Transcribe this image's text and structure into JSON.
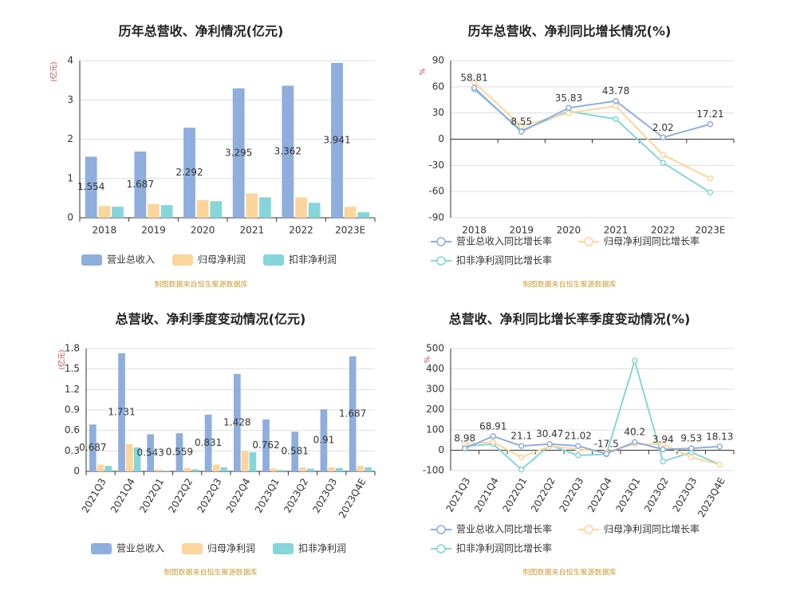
{
  "chart_data": [
    {
      "type": "bar",
      "title": "历年总营收、净利情况(亿元)",
      "ylabel": "(亿元)",
      "source": "制图数据来自恒生聚源数据库",
      "categories": [
        "2018",
        "2019",
        "2020",
        "2021",
        "2022",
        "2023E"
      ],
      "ylim": [
        0,
        4
      ],
      "yticks": [
        0,
        1,
        2,
        3,
        4
      ],
      "grid": true,
      "series": [
        {
          "name": "营业总收入",
          "color": "#8eaedd",
          "labels": true,
          "values": [
            1.554,
            1.687,
            2.292,
            3.295,
            3.362,
            3.941
          ]
        },
        {
          "name": "归母净利润",
          "color": "#fcd59c",
          "labels": false,
          "values": [
            0.3,
            0.35,
            0.45,
            0.62,
            0.52,
            0.28
          ]
        },
        {
          "name": "扣非净利润",
          "color": "#86d5d8",
          "labels": false,
          "values": [
            0.28,
            0.32,
            0.42,
            0.52,
            0.38,
            0.14
          ]
        }
      ]
    },
    {
      "type": "line",
      "title": "历年总营收、净利同比增长情况(%)",
      "ylabel": "%",
      "source": "制图数据来自恒生聚源数据库",
      "categories": [
        "2018",
        "2019",
        "2020",
        "2021",
        "2022",
        "2023E"
      ],
      "ylim": [
        -90,
        90
      ],
      "yticks": [
        -90,
        -60,
        -30,
        0,
        30,
        60,
        90
      ],
      "grid": true,
      "series": [
        {
          "name": "营业总收入同比增长率",
          "color": "#8eaedd",
          "labels": true,
          "values": [
            58.81,
            8.55,
            35.83,
            43.78,
            2.02,
            17.21
          ]
        },
        {
          "name": "归母净利润同比增长率",
          "color": "#fcd59c",
          "labels": false,
          "values": [
            65,
            15,
            30,
            38,
            -18,
            -45
          ]
        },
        {
          "name": "扣非净利润同比增长率",
          "color": "#86d5d8",
          "labels": false,
          "values": [
            57,
            10,
            32,
            23,
            -27,
            -61
          ]
        }
      ]
    },
    {
      "type": "bar",
      "title": "总营收、净利季度变动情况(亿元)",
      "ylabel": "(亿元)",
      "source": "制图数据来自恒生聚源数据库",
      "categories": [
        "2021Q3",
        "2021Q4",
        "2022Q1",
        "2022Q2",
        "2022Q3",
        "2022Q4",
        "2023Q1",
        "2023Q2",
        "2023Q3",
        "2023Q4E"
      ],
      "ylim": [
        0,
        1.8
      ],
      "yticks": [
        0,
        0.3,
        0.6,
        0.9,
        1.2,
        1.5,
        1.8
      ],
      "grid": true,
      "series": [
        {
          "name": "营业总收入",
          "color": "#8eaedd",
          "labels": true,
          "values": [
            0.687,
            1.731,
            0.543,
            0.559,
            0.831,
            1.428,
            0.762,
            0.581,
            0.91,
            1.687
          ]
        },
        {
          "name": "归母净利润",
          "color": "#fcd59c",
          "labels": false,
          "values": [
            0.1,
            0.4,
            0.03,
            0.05,
            0.1,
            0.3,
            0.04,
            0.06,
            0.06,
            0.08
          ]
        },
        {
          "name": "扣非净利润",
          "color": "#86d5d8",
          "labels": false,
          "values": [
            0.08,
            0.35,
            0.01,
            0.03,
            0.06,
            0.28,
            0.02,
            0.04,
            0.05,
            0.06
          ]
        }
      ]
    },
    {
      "type": "line",
      "title": "总营收、净利同比增长率季度变动情况(%)",
      "ylabel": "%",
      "source": "制图数据来自恒生聚源数据库",
      "categories": [
        "2021Q3",
        "2021Q4",
        "2022Q1",
        "2022Q2",
        "2022Q3",
        "2022Q4",
        "2023Q1",
        "2023Q2",
        "2023Q3",
        "2023Q4E"
      ],
      "ylim": [
        -100,
        500
      ],
      "yticks": [
        -100,
        0,
        100,
        200,
        300,
        400,
        500
      ],
      "grid": true,
      "series": [
        {
          "name": "营业总收入同比增长率",
          "color": "#8eaedd",
          "labels": true,
          "values": [
            8.98,
            68.91,
            21.1,
            30.47,
            21.02,
            -17.5,
            40.2,
            3.94,
            9.53,
            18.13
          ]
        },
        {
          "name": "归母净利润同比增长率",
          "color": "#fcd59c",
          "labels": false,
          "values": [
            30,
            40,
            -35,
            20,
            5,
            -10,
            30,
            30,
            -35,
            -70
          ]
        },
        {
          "name": "扣非净利润同比增长率",
          "color": "#86d5d8",
          "labels": false,
          "values": [
            20,
            30,
            -95,
            25,
            -25,
            -20,
            440,
            -55,
            -10,
            -70
          ]
        }
      ]
    }
  ]
}
